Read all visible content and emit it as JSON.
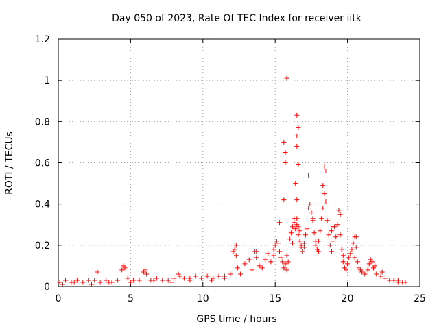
{
  "chart_data": {
    "type": "scatter",
    "title": "Day 050 of 2023, Rate Of TEC Index for receiver iitk",
    "xlabel": "GPS time / hours",
    "ylabel": "ROTI / TECUs",
    "xlim": [
      0,
      25
    ],
    "ylim": [
      0,
      1.2
    ],
    "xticks": [
      "0",
      "5",
      "10",
      "15",
      "20",
      "25"
    ],
    "yticks": [
      "0",
      "0.2",
      "0.4",
      "0.6",
      "0.8",
      "1",
      "1.2"
    ],
    "grid": true,
    "marker": "+",
    "color": "#ff0000",
    "series": [
      {
        "x": [
          0.1,
          0.5,
          0.9,
          1.3,
          1.7,
          2.1,
          2.5,
          2.7,
          2.9,
          3.3,
          3.7,
          4.1,
          4.4,
          4.5,
          4.6,
          4.8,
          5.2,
          5.6,
          5.9,
          6.0,
          6.1,
          6.4,
          6.8,
          7.2,
          7.6,
          8.0,
          8.3,
          8.4,
          8.7,
          9.1,
          9.5,
          9.9,
          10.3,
          10.7,
          11.1,
          11.5,
          11.9,
          12.1,
          12.2,
          12.3,
          12.4,
          12.6,
          12.9,
          13.2,
          13.4,
          13.6,
          13.7,
          13.9,
          14.1,
          14.3,
          14.5,
          14.7,
          14.9,
          15.0,
          15.1,
          15.2,
          15.3,
          15.4,
          15.5,
          15.6,
          15.7,
          15.8,
          15.8,
          15.9,
          16.0,
          16.1,
          16.2,
          16.3,
          16.4,
          16.5,
          16.5,
          16.6,
          16.6,
          16.7,
          16.8,
          16.9,
          17.0,
          17.1,
          17.2,
          17.3,
          17.4,
          17.5,
          17.6,
          17.7,
          17.8,
          17.9,
          18.0,
          18.1,
          18.2,
          18.3,
          18.4,
          18.5,
          18.6,
          18.7,
          18.8,
          18.9,
          19.0,
          19.1,
          19.2,
          19.3,
          19.4,
          19.5,
          19.6,
          19.7,
          19.8,
          19.9,
          20.0,
          20.1,
          20.2,
          20.3,
          20.4,
          20.5,
          20.6,
          20.7,
          20.8,
          20.9,
          21.0,
          21.2,
          21.4,
          21.5,
          21.6,
          21.7,
          21.8,
          22.0,
          22.3,
          22.6,
          22.9,
          23.2,
          23.5,
          23.8,
          24.0,
          15.8,
          15.6,
          15.7,
          15.7,
          16.5,
          16.6,
          16.5,
          16.4,
          16.6,
          16.5,
          15.6,
          16.7,
          17.3,
          18.4,
          18.5,
          18.3,
          19.4,
          19.0,
          16.5,
          16.3,
          17.6,
          16.8,
          17.8,
          18.9,
          20.6,
          19.5,
          21.7,
          12.3,
          13.7,
          14.9,
          15.3,
          16.2,
          17.0,
          18.0,
          19.7,
          20.5,
          21.9,
          23.5,
          22.4,
          0.3,
          1.1,
          2.3,
          3.5,
          5.0,
          6.6,
          7.8,
          9.1,
          10.6,
          11.5
        ],
        "y": [
          0.02,
          0.03,
          0.02,
          0.03,
          0.02,
          0.03,
          0.03,
          0.07,
          0.02,
          0.03,
          0.02,
          0.03,
          0.08,
          0.1,
          0.09,
          0.04,
          0.03,
          0.03,
          0.07,
          0.08,
          0.06,
          0.03,
          0.04,
          0.03,
          0.03,
          0.04,
          0.06,
          0.05,
          0.04,
          0.04,
          0.05,
          0.04,
          0.05,
          0.04,
          0.05,
          0.05,
          0.06,
          0.17,
          0.18,
          0.15,
          0.09,
          0.06,
          0.11,
          0.13,
          0.08,
          0.17,
          0.14,
          0.1,
          0.09,
          0.13,
          0.16,
          0.12,
          0.18,
          0.2,
          0.22,
          0.21,
          0.17,
          0.14,
          0.12,
          0.09,
          0.11,
          0.08,
          0.15,
          0.12,
          0.23,
          0.26,
          0.29,
          0.31,
          0.28,
          0.33,
          0.3,
          0.29,
          0.25,
          0.22,
          0.19,
          0.17,
          0.21,
          0.25,
          0.28,
          0.38,
          0.4,
          0.36,
          0.32,
          0.26,
          0.2,
          0.18,
          0.22,
          0.27,
          0.33,
          0.38,
          0.45,
          0.41,
          0.32,
          0.25,
          0.2,
          0.17,
          0.22,
          0.29,
          0.24,
          0.3,
          0.37,
          0.25,
          0.18,
          0.12,
          0.09,
          0.08,
          0.11,
          0.14,
          0.16,
          0.18,
          0.21,
          0.24,
          0.19,
          0.12,
          0.09,
          0.08,
          0.07,
          0.06,
          0.08,
          0.11,
          0.13,
          0.12,
          0.09,
          0.06,
          0.05,
          0.04,
          0.03,
          0.03,
          0.02,
          0.02,
          0.02,
          1.01,
          0.7,
          0.65,
          0.6,
          0.83,
          0.77,
          0.73,
          0.5,
          0.59,
          0.42,
          0.42,
          0.27,
          0.54,
          0.58,
          0.56,
          0.49,
          0.37,
          0.29,
          0.68,
          0.33,
          0.33,
          0.2,
          0.22,
          0.27,
          0.24,
          0.35,
          0.12,
          0.2,
          0.17,
          0.15,
          0.31,
          0.21,
          0.19,
          0.17,
          0.15,
          0.14,
          0.1,
          0.03,
          0.07,
          0.01,
          0.02,
          0.01,
          0.02,
          0.02,
          0.03,
          0.02,
          0.03,
          0.03,
          0.04
        ]
      }
    ]
  }
}
